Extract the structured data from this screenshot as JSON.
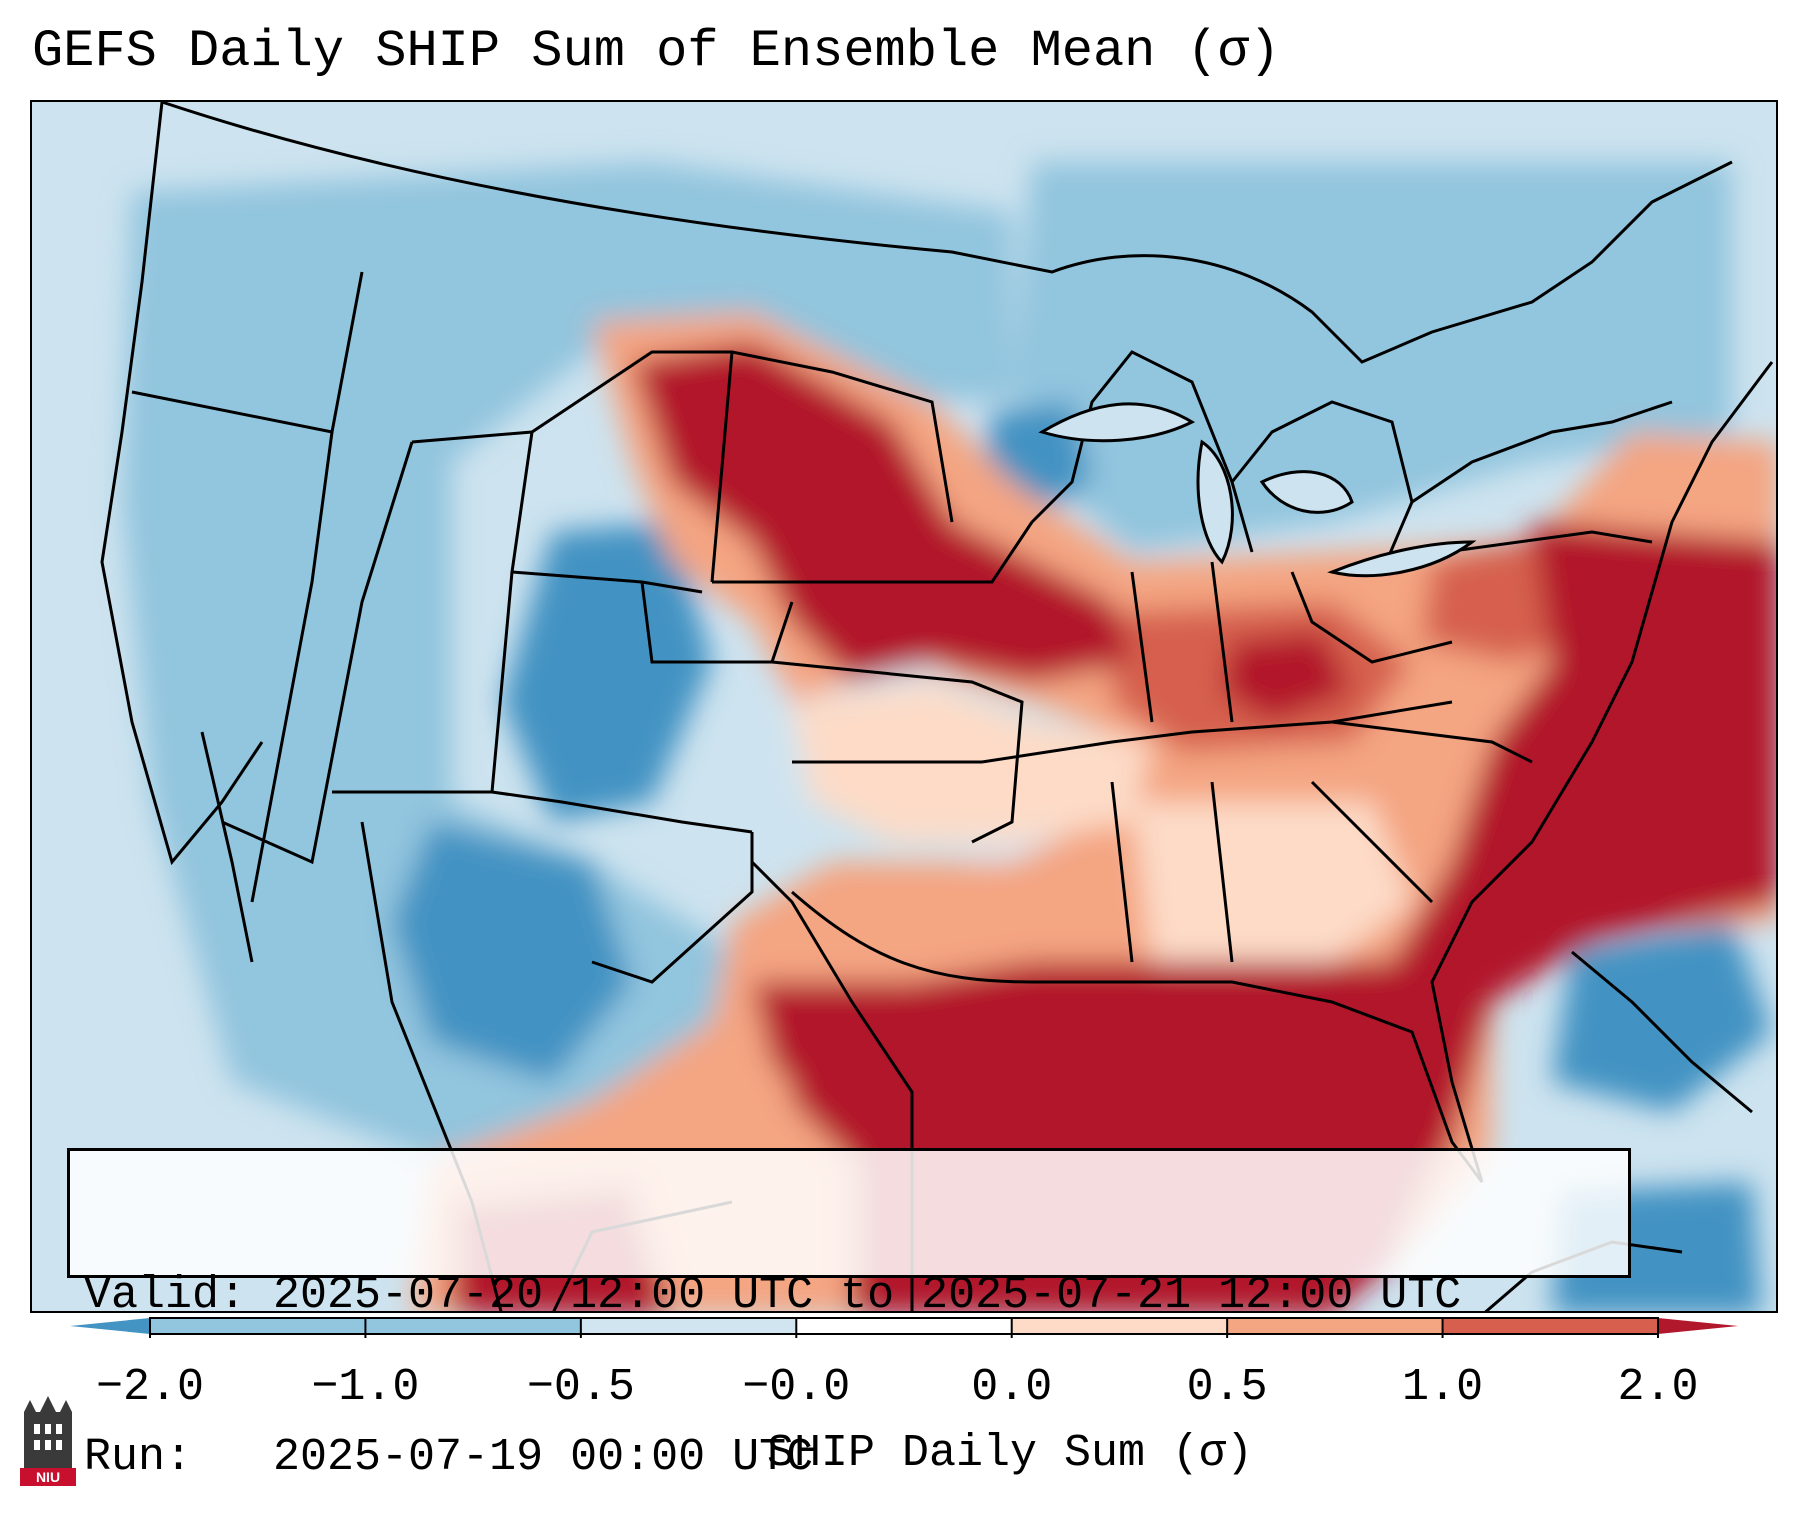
{
  "title": "GEFS Daily SHIP Sum of Ensemble Mean (σ)",
  "info": {
    "valid_line": "Valid: 2025-07-20 12:00 UTC to 2025-07-21 12:00 UTC",
    "run_line": "Run:   2025-07-19 00:00 UTC"
  },
  "colorbar": {
    "label": "SHIP Daily Sum (σ)",
    "ticks": [
      "−2.0",
      "−1.0",
      "−0.5",
      "−0.0",
      "0.0",
      "0.5",
      "1.0",
      "2.0"
    ],
    "colors": [
      "#4393c3",
      "#92c5de",
      "#d1e5f0",
      "#ffffff",
      "#fddbc7",
      "#f4a582",
      "#d6604d",
      "#b2182b"
    ],
    "extend_low": "#4393c3",
    "extend_high": "#b2182b"
  },
  "logo": {
    "text": "NIU",
    "icon": "niu-tower-logo-icon"
  }
}
